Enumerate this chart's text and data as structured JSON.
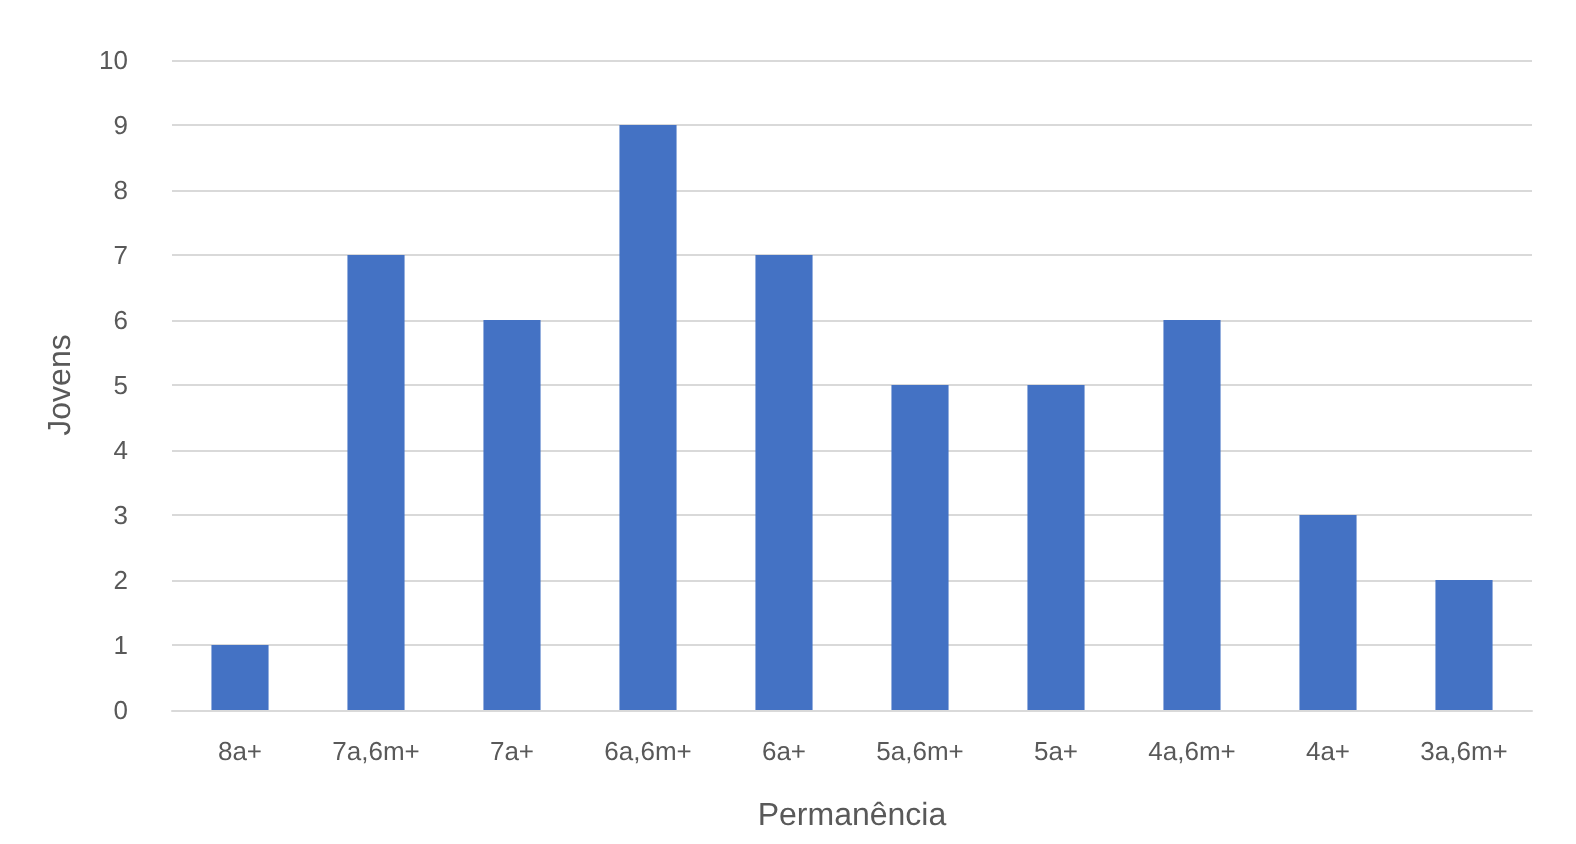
{
  "chart_data": {
    "type": "bar",
    "xlabel": "Permanência",
    "ylabel": "Jovens",
    "categories": [
      "8a+",
      "7a,6m+",
      "7a+",
      "6a,6m+",
      "6a+",
      "5a,6m+",
      "5a+",
      "4a,6m+",
      "4a+",
      "3a,6m+"
    ],
    "values": [
      1,
      7,
      6,
      9,
      7,
      5,
      5,
      6,
      3,
      2
    ],
    "color": "#4472c4",
    "ylim": [
      0,
      10
    ],
    "yticks": [
      0,
      1,
      2,
      3,
      4,
      5,
      6,
      7,
      8,
      9,
      10
    ],
    "grid": "y"
  }
}
